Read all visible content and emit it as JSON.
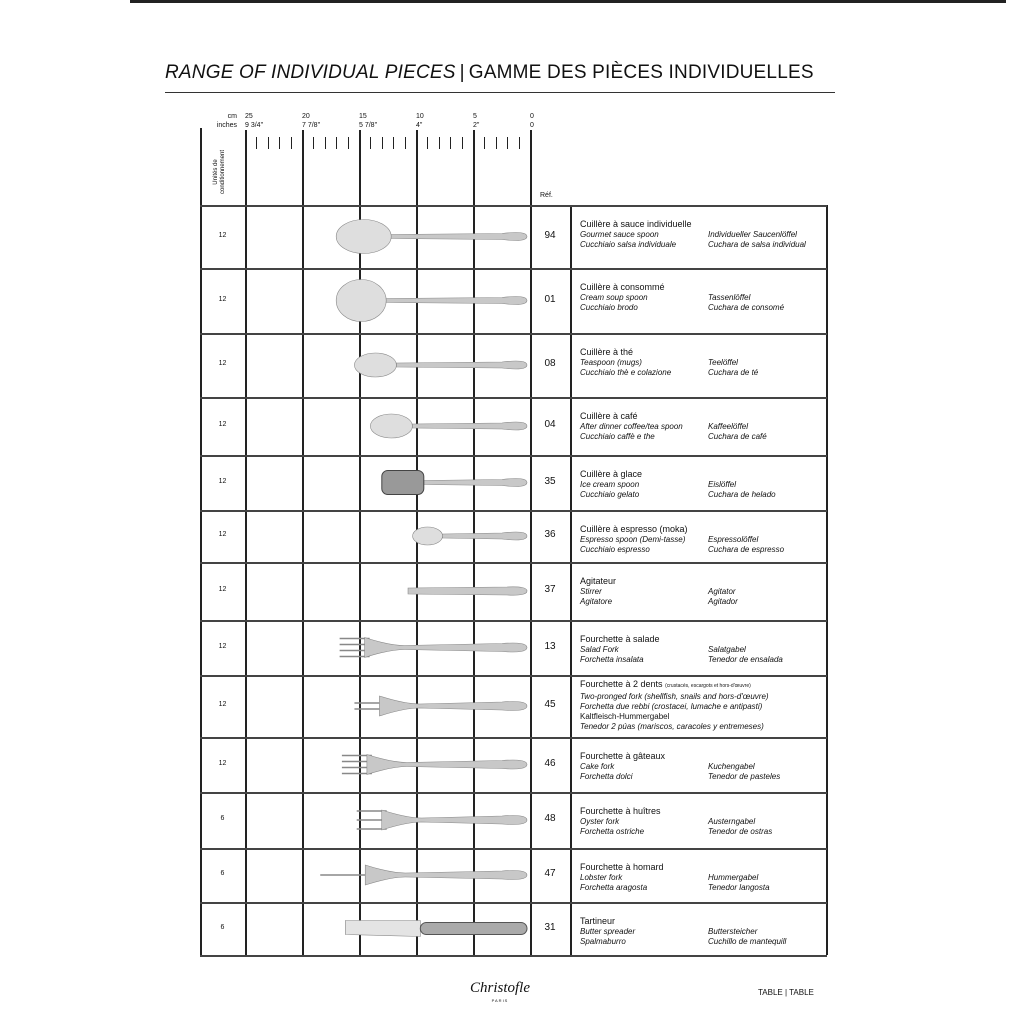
{
  "title": {
    "en": "RANGE OF INDIVIDUAL PIECES",
    "separator": "|",
    "fr": "GAMME DES PIÈCES INDIVIDUELLES"
  },
  "ruler": {
    "cm_label": "cm",
    "inches_label": "inches",
    "cm_ticks": [
      "25",
      "20",
      "15",
      "10",
      "5",
      "0"
    ],
    "inch_ticks": [
      "9 3/4\"",
      "7 7/8\"",
      "5 7/8\"",
      "4\"",
      "2\"",
      "0"
    ],
    "units_header": "Unités de conditionnement",
    "ref_header": "Réf."
  },
  "rows": [
    {
      "units": "12",
      "ref": "94",
      "type": "sauce-spoon",
      "length_cm": 17,
      "fr": "Cuillère à sauce individuelle",
      "en": "Gourmet sauce spoon",
      "de": "Individueller Saucenlöffel",
      "it": "Cucchiaio salsa individuale",
      "es": "Cuchara de salsa individual"
    },
    {
      "units": "12",
      "ref": "01",
      "type": "soup-spoon",
      "length_cm": 17,
      "fr": "Cuillère à consommé",
      "en": "Cream soup spoon",
      "de": "Tassenlöffel",
      "it": "Cucchiaio brodo",
      "es": "Cuchara de consomé"
    },
    {
      "units": "12",
      "ref": "08",
      "type": "spoon",
      "length_cm": 15.4,
      "fr": "Cuillère à thé",
      "en": "Teaspoon (mugs)",
      "de": "Teelöffel",
      "it": "Cucchiaio thè e colazione",
      "es": "Cuchara de té"
    },
    {
      "units": "12",
      "ref": "04",
      "type": "spoon",
      "length_cm": 14,
      "fr": "Cuillère à café",
      "en": "After dinner coffee/tea spoon",
      "de": "Kaffeelöffel",
      "it": "Cucchiaio caffè e the",
      "es": "Cuchara de café"
    },
    {
      "units": "12",
      "ref": "35",
      "type": "ice-spoon",
      "length_cm": 13,
      "fr": "Cuillère à glace",
      "en": "Ice cream spoon",
      "de": "Eislöffel",
      "it": "Cucchiaio gelato",
      "es": "Cuchara de helado"
    },
    {
      "units": "12",
      "ref": "36",
      "type": "spoon",
      "length_cm": 10.3,
      "fr": "Cuillère à espresso (moka)",
      "en": "Espresso spoon (Demi-tasse)",
      "de": "Espressolöffel",
      "it": "Cucchiaio espresso",
      "es": "Cuchara de espresso"
    },
    {
      "units": "12",
      "ref": "37",
      "type": "stirrer",
      "length_cm": 10.7,
      "fr": "Agitateur",
      "en": "Stirrer",
      "de": "Agitator",
      "it": "Agitatore",
      "es": "Agitador"
    },
    {
      "units": "12",
      "ref": "13",
      "type": "fork",
      "length_cm": 16.7,
      "fr": "Fourchette à salade",
      "en": "Salad Fork",
      "de": "Salatgabel",
      "it": "Forchetta insalata",
      "es": "Tenedor de ensalada"
    },
    {
      "units": "12",
      "ref": "45",
      "type": "two-prong-fork",
      "length_cm": 15.4,
      "fr": "Fourchette à 2 dents",
      "fr_note": "(crustacés, escargots et hors-d'œuvre)",
      "lines": [
        "Two-pronged fork (shellfish, snails and hors-d'œuvre)",
        "Forchetta due rebbi (crostacei, lumache e antipasti)",
        "Kaltfleisch-Hummergabel",
        "Tenedor 2 púas (mariscos, caracoles y entremeses)"
      ]
    },
    {
      "units": "12",
      "ref": "46",
      "type": "fork",
      "length_cm": 16.5,
      "fr": "Fourchette à gâteaux",
      "en": "Cake fork",
      "de": "Kuchengabel",
      "it": "Forchetta dolci",
      "es": "Tenedor de pasteles"
    },
    {
      "units": "6",
      "ref": "48",
      "type": "oyster-fork",
      "length_cm": 15.2,
      "fr": "Fourchette à huîtres",
      "en": "Oyster fork",
      "de": "Austerngabel",
      "it": "Forchetta ostriche",
      "es": "Tenedor de ostras"
    },
    {
      "units": "6",
      "ref": "47",
      "type": "lobster-fork",
      "length_cm": 18.4,
      "fr": "Fourchette à homard",
      "en": "Lobster fork",
      "de": "Hummergabel",
      "it": "Forchetta aragosta",
      "es": "Tenedor langosta"
    },
    {
      "units": "6",
      "ref": "31",
      "type": "spreader",
      "length_cm": 16.2,
      "fr": "Tartineur",
      "en": "Butter spreader",
      "de": "Buttersteicher",
      "it": "Spalmaburro",
      "es": "Cuchillo de mantequill"
    }
  ],
  "footer": {
    "brand": "Christofle",
    "brand_sub": "PARIS",
    "section": "TABLE | TABLE"
  }
}
